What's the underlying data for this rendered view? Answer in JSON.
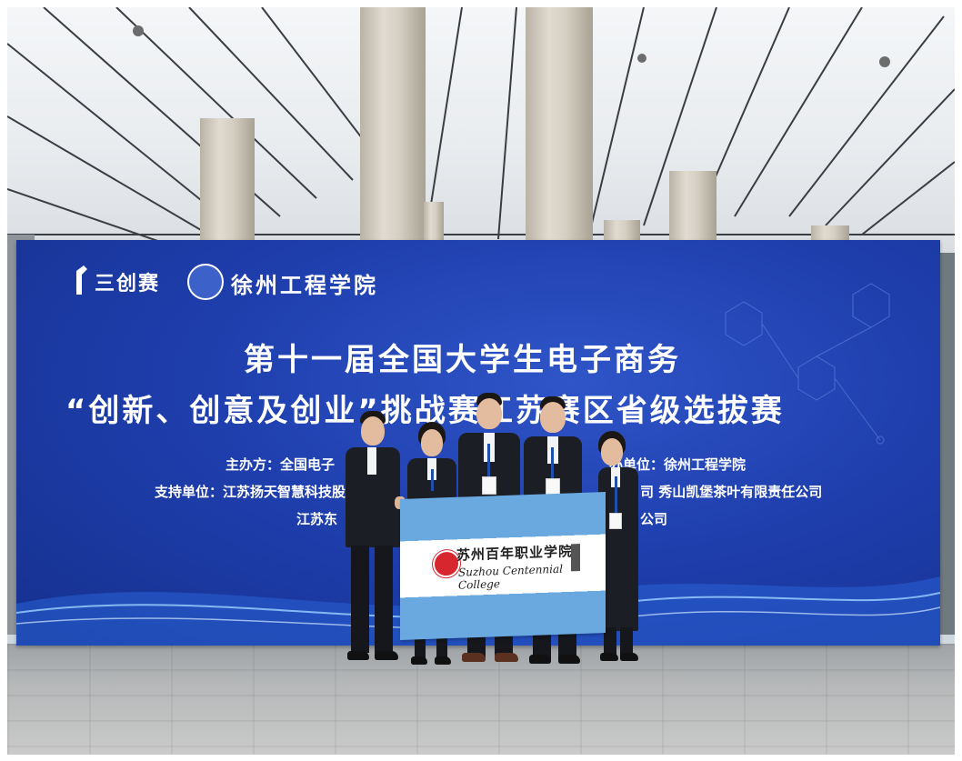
{
  "banner": {
    "logo_left": "三创赛",
    "logo_right": "徐州工程学院",
    "title_line1": "第十一届全国大学生电子商务",
    "title_line2": "“创新、创意及创业”挑战赛江苏赛区省级选拔赛",
    "organizer": "主办方：全国电子",
    "cohost": "办单位：徐州工程学院",
    "support_left": "支持单位：江苏扬天智慧科技股份",
    "support_right": "司    秀山凯堡茶叶有限责任公司",
    "support_row3_left": "江苏东",
    "support_row3_right": "公司"
  },
  "flag": {
    "name_cn": "苏州百年职业学院",
    "name_en": "Suzhou Centennial College"
  },
  "colors": {
    "banner_blue": "#1f3fae",
    "flag_blue": "#6aa9e0",
    "emblem_red": "#d7262e"
  }
}
